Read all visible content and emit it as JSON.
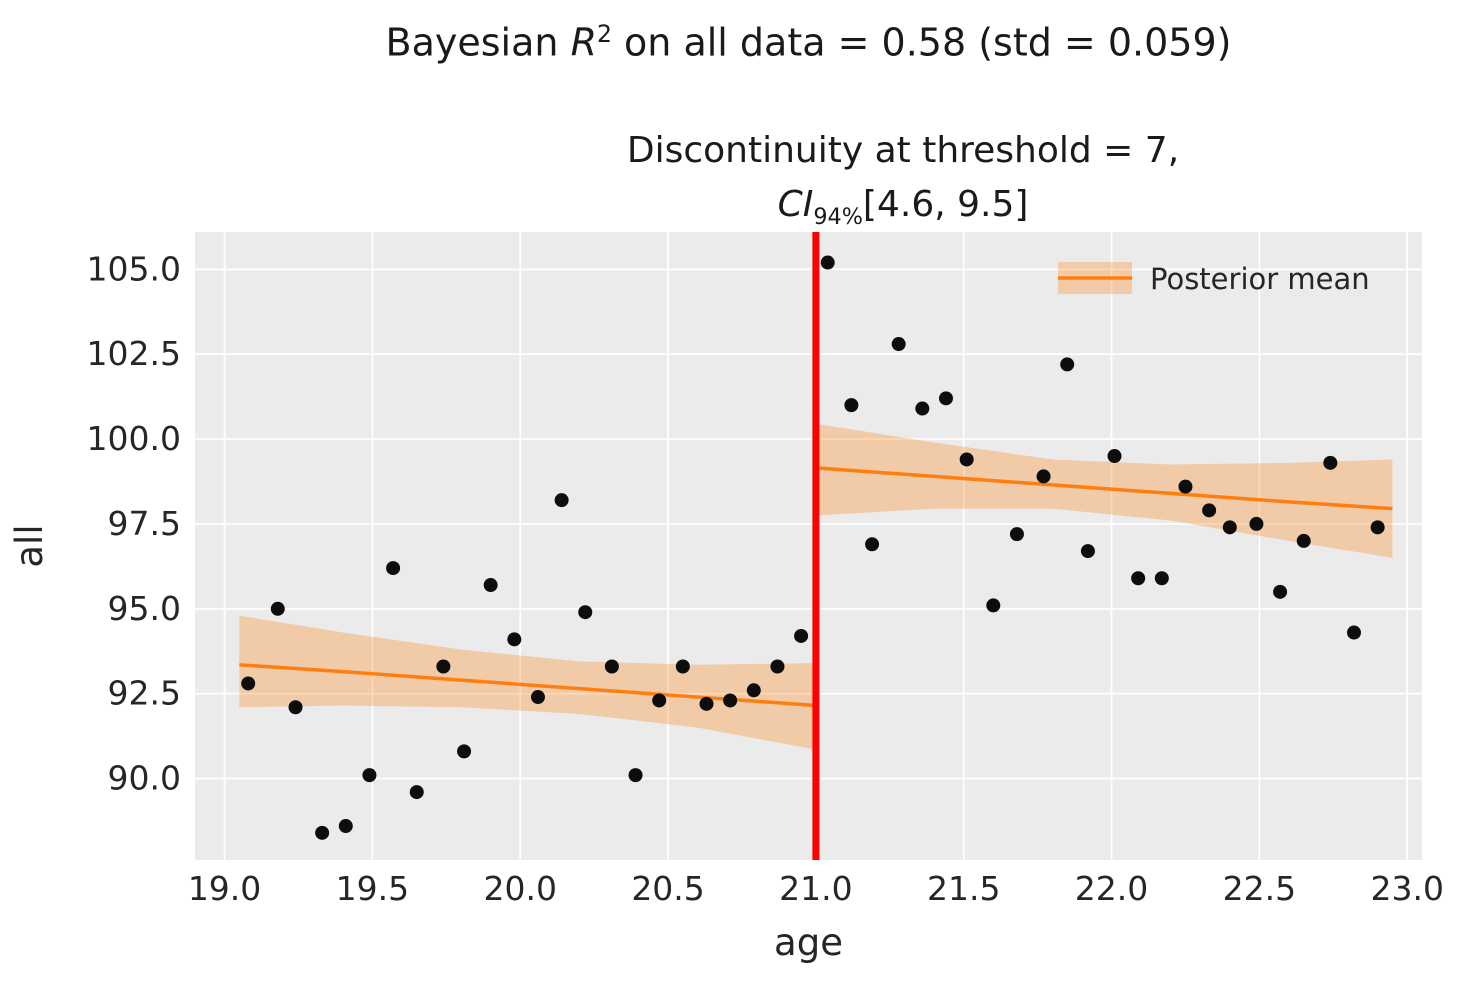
{
  "figure": {
    "title": {
      "prefix": "Bayesian ",
      "math_var": "R",
      "math_sup": "2",
      "suffix": " on all data = 0.58 (std = 0.059)"
    },
    "subtitle": {
      "line1": "Discontinuity at threshold = 7,",
      "ci_var": "CI",
      "ci_sub": "94%",
      "ci_rest": "[4.6, 9.5]"
    }
  },
  "chart_data": {
    "type": "scatter",
    "title": "Bayesian R^2 on all data = 0.58 (std = 0.059)",
    "subtitle": "Discontinuity at threshold = 7, CI_94% [4.6, 9.5]",
    "xlabel": "age",
    "ylabel": "all",
    "xlim": [
      18.9,
      23.05
    ],
    "ylim": [
      87.6,
      106.1
    ],
    "xticks": [
      "19.0",
      "19.5",
      "20.0",
      "20.5",
      "21.0",
      "21.5",
      "22.0",
      "22.5",
      "23.0"
    ],
    "yticks": [
      "90.0",
      "92.5",
      "95.0",
      "97.5",
      "100.0",
      "102.5",
      "105.0"
    ],
    "grid": true,
    "legend": {
      "label": "Posterior mean",
      "position": "upper right"
    },
    "colors": {
      "plot_bg": "#ebebeb",
      "grid": "#ffffff",
      "posterior": "#ff7f0e",
      "band_alpha": 0.3,
      "threshold": "#ff0000",
      "scatter": "#0d0d0d",
      "text": "#262626"
    },
    "threshold": {
      "x": 21.0
    },
    "scatter_points": [
      [
        19.08,
        92.8
      ],
      [
        19.18,
        95.0
      ],
      [
        19.24,
        92.1
      ],
      [
        19.33,
        88.4
      ],
      [
        19.41,
        88.6
      ],
      [
        19.49,
        90.1
      ],
      [
        19.57,
        96.2
      ],
      [
        19.65,
        89.6
      ],
      [
        19.74,
        93.3
      ],
      [
        19.81,
        90.8
      ],
      [
        19.9,
        95.7
      ],
      [
        19.98,
        94.1
      ],
      [
        20.06,
        92.4
      ],
      [
        20.14,
        98.2
      ],
      [
        20.22,
        94.9
      ],
      [
        20.31,
        93.3
      ],
      [
        20.39,
        90.1
      ],
      [
        20.47,
        92.3
      ],
      [
        20.55,
        93.3
      ],
      [
        20.63,
        92.2
      ],
      [
        20.71,
        92.3
      ],
      [
        20.79,
        92.6
      ],
      [
        20.87,
        93.3
      ],
      [
        20.95,
        94.2
      ],
      [
        21.04,
        105.2
      ],
      [
        21.12,
        101.0
      ],
      [
        21.19,
        96.9
      ],
      [
        21.28,
        102.8
      ],
      [
        21.36,
        100.9
      ],
      [
        21.44,
        101.2
      ],
      [
        21.51,
        99.4
      ],
      [
        21.6,
        95.1
      ],
      [
        21.68,
        97.2
      ],
      [
        21.77,
        98.9
      ],
      [
        21.85,
        102.2
      ],
      [
        21.92,
        96.7
      ],
      [
        22.01,
        99.5
      ],
      [
        22.09,
        95.9
      ],
      [
        22.17,
        95.9
      ],
      [
        22.25,
        98.6
      ],
      [
        22.33,
        97.9
      ],
      [
        22.4,
        97.4
      ],
      [
        22.49,
        97.5
      ],
      [
        22.57,
        95.5
      ],
      [
        22.65,
        97.0
      ],
      [
        22.74,
        99.3
      ],
      [
        22.82,
        94.3
      ],
      [
        22.9,
        97.4
      ]
    ],
    "posterior_segments": [
      {
        "x": [
          19.05,
          19.4,
          19.8,
          20.2,
          20.6,
          21.0
        ],
        "mean": [
          93.35,
          93.15,
          92.9,
          92.65,
          92.4,
          92.15
        ],
        "upper": [
          94.8,
          94.3,
          93.8,
          93.45,
          93.35,
          93.4
        ],
        "lower": [
          92.1,
          92.15,
          92.1,
          91.9,
          91.5,
          90.85
        ]
      },
      {
        "x": [
          21.0,
          21.4,
          21.8,
          22.2,
          22.6,
          22.95
        ],
        "mean": [
          99.15,
          98.9,
          98.65,
          98.4,
          98.15,
          97.95
        ],
        "upper": [
          100.45,
          99.9,
          99.4,
          99.25,
          99.3,
          99.4
        ],
        "lower": [
          97.75,
          97.95,
          97.95,
          97.6,
          97.0,
          96.5
        ]
      }
    ]
  }
}
